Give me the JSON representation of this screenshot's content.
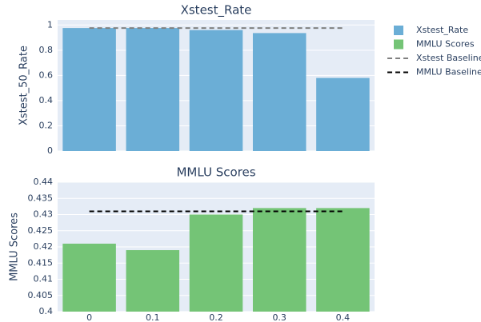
{
  "chart_data": [
    {
      "type": "bar",
      "title": "Xstest_Rate",
      "y_label": "Xstest_50_Rate",
      "categories": [
        null,
        null,
        null,
        null,
        null
      ],
      "series": [
        {
          "name": "Xstest_Rate",
          "color": "#6baed6",
          "values": [
            0.976,
            0.976,
            0.96,
            0.936,
            0.58
          ]
        },
        {
          "name": "Xstest Baseline",
          "type": "line",
          "color": "#808080",
          "dash": "dash",
          "value": 0.976
        }
      ],
      "ylim": [
        0,
        1.04
      ],
      "yticks": [
        0,
        0.2,
        0.4,
        0.6,
        0.8,
        1
      ],
      "grid": true
    },
    {
      "type": "bar",
      "title": "MMLU Scores",
      "y_label": "MMLU Scores",
      "categories": [
        "0",
        "0.1",
        "0.2",
        "0.3",
        "0.4"
      ],
      "series": [
        {
          "name": "MMLU Scores",
          "color": "#74c476",
          "values": [
            0.421,
            0.419,
            0.43,
            0.432,
            0.432
          ]
        },
        {
          "name": "MMLU Baseline",
          "type": "line",
          "color": "#000000",
          "dash": "dash",
          "value": 0.431
        }
      ],
      "ylim": [
        0.4,
        0.44
      ],
      "yticks": [
        0.4,
        0.405,
        0.41,
        0.415,
        0.42,
        0.425,
        0.43,
        0.435,
        0.44
      ],
      "grid": true
    }
  ]
}
